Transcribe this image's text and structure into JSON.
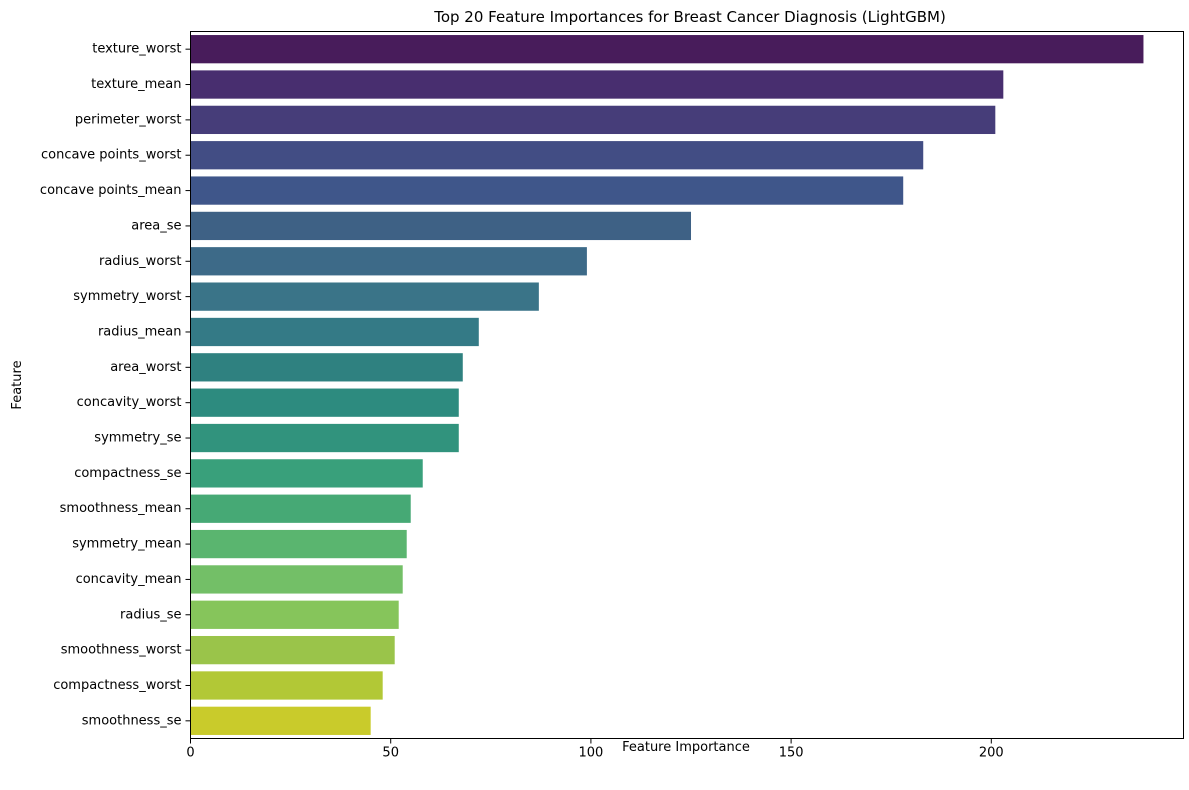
{
  "chart_data": {
    "type": "bar",
    "orientation": "horizontal",
    "title": "Top 20 Feature Importances for Breast Cancer Diagnosis (LightGBM)",
    "xlabel": "Feature Importance",
    "ylabel": "Feature",
    "xlim": [
      0,
      248
    ],
    "xticks": [
      0,
      50,
      100,
      150,
      200
    ],
    "grid": false,
    "categories": [
      "texture_worst",
      "texture_mean",
      "perimeter_worst",
      "concave points_worst",
      "concave points_mean",
      "area_se",
      "radius_worst",
      "symmetry_worst",
      "radius_mean",
      "area_worst",
      "concavity_worst",
      "symmetry_se",
      "compactness_se",
      "smoothness_mean",
      "symmetry_mean",
      "concavity_mean",
      "radius_se",
      "smoothness_worst",
      "compactness_worst",
      "smoothness_se"
    ],
    "values": [
      238,
      203,
      201,
      183,
      178,
      125,
      99,
      87,
      72,
      68,
      67,
      67,
      58,
      55,
      54,
      53,
      52,
      51,
      48,
      45
    ],
    "colors": [
      "#481c5b",
      "#482e6f",
      "#463d79",
      "#424d84",
      "#3f568a",
      "#3e6185",
      "#3d6a88",
      "#3a7488",
      "#347a86",
      "#2f8180",
      "#2d8b7f",
      "#31937d",
      "#39a07b",
      "#46a975",
      "#5ab56f",
      "#73bf67",
      "#86c55b",
      "#9ac44a",
      "#b2c836",
      "#c9cb2b"
    ]
  }
}
